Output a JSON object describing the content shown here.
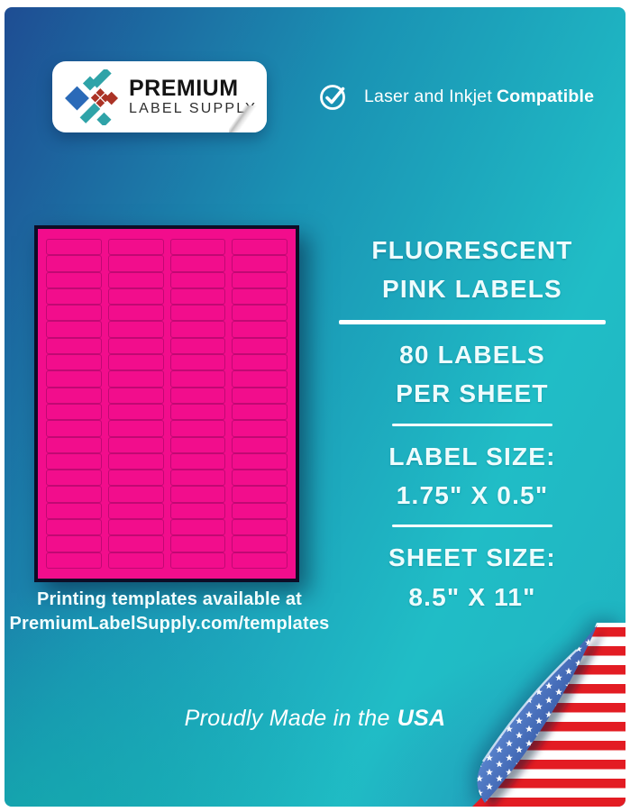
{
  "colors": {
    "pink": "#f20d8c",
    "pink_dark": "#c00973",
    "navy": "#0d0d26",
    "bg_blue": "#1e4d93",
    "bg_teal": "#20bdc6",
    "flag_red": "#e31c23",
    "flag_blue_dark": "#1c3b8c",
    "logo_blue": "#2a6ab8",
    "logo_teal": "#2fa3a8",
    "logo_red": "#ab3326"
  },
  "logo": {
    "line1": "PREMIUM",
    "line2": "LABEL SUPPLY",
    "icon": "diamond-cluster-logo-icon"
  },
  "compatibility": {
    "icon": "check-circle-icon",
    "regular": "Laser and Inkjet",
    "bold": "Compatible"
  },
  "sheet": {
    "rows": 20,
    "columns": 4,
    "total_labels": 80
  },
  "specs": {
    "title_line1": "FLUORESCENT",
    "title_line2": "PINK LABELS",
    "count_line1": "80 LABELS",
    "count_line2": "PER SHEET",
    "label_size_heading": "LABEL SIZE:",
    "label_size_value": "1.75\" X 0.5\"",
    "sheet_size_heading": "SHEET SIZE:",
    "sheet_size_value": "8.5\" X 11\""
  },
  "templates_note": {
    "line1": "Printing templates available at",
    "line2": "PremiumLabelSupply.com/templates"
  },
  "footer": {
    "prefix": "Proudly Made in the",
    "bold": "USA"
  },
  "flag": {
    "icon": "usa-flag-page-curl-icon"
  }
}
